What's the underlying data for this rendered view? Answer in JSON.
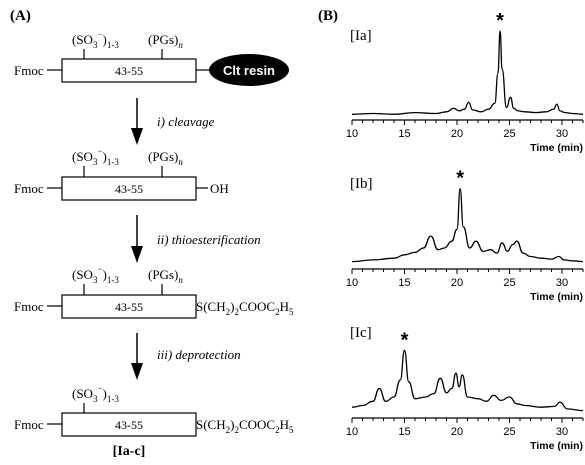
{
  "panel_a": {
    "label": "(A)",
    "steps": [
      {
        "sulfate": "(SO3−)1-3",
        "pgs": "(PGs)n",
        "n_terminal": "Fmoc",
        "segment": "43-55",
        "c_terminal": "Clt resin"
      },
      {
        "sulfate": "(SO3−)1-3",
        "pgs": "(PGs)n",
        "n_terminal": "Fmoc",
        "segment": "43-55",
        "c_terminal": "OH"
      },
      {
        "sulfate": "(SO3−)1-3",
        "pgs": "(PGs)n",
        "n_terminal": "Fmoc",
        "segment": "43-55",
        "c_terminal": "S(CH2)2COOC2H5"
      },
      {
        "sulfate": "(SO3−)1-3",
        "n_terminal": "Fmoc",
        "segment": "43-55",
        "c_terminal": "S(CH2)2COOC2H5",
        "compound": "[Ia-c]"
      }
    ],
    "arrows": [
      "i) cleavage",
      "ii) thioesterification",
      "iii) deprotection"
    ]
  },
  "panel_b": {
    "label": "(B)",
    "peak_marker": "*",
    "xlabel": "Time (min)",
    "tick_labels": [
      "10",
      "15",
      "20",
      "25",
      "30"
    ]
  },
  "chart_data": [
    {
      "type": "line",
      "title": "[Ia]",
      "xlabel": "Time (min)",
      "xlim": [
        10,
        32
      ],
      "marker_x": 24.1,
      "x": [
        10,
        12,
        14,
        16,
        18,
        19,
        19.7,
        20.2,
        20.7,
        21.1,
        21.5,
        22.3,
        23,
        23.6,
        23.9,
        24.1,
        24.3,
        24.7,
        25.1,
        25.4,
        25.8,
        26.5,
        27.5,
        28.5,
        29.2,
        29.5,
        29.8,
        30.3,
        31,
        32
      ],
      "y": [
        0.02,
        0.03,
        0.02,
        0.04,
        0.03,
        0.05,
        0.09,
        0.06,
        0.08,
        0.16,
        0.07,
        0.05,
        0.08,
        0.15,
        0.5,
        1.0,
        0.55,
        0.1,
        0.22,
        0.09,
        0.06,
        0.05,
        0.04,
        0.05,
        0.08,
        0.14,
        0.06,
        0.04,
        0.03,
        0.02
      ]
    },
    {
      "type": "line",
      "title": "[Ib]",
      "xlabel": "Time (min)",
      "xlim": [
        10,
        32
      ],
      "marker_x": 20.3,
      "x": [
        10,
        12,
        14,
        15,
        16,
        16.8,
        17.5,
        18.2,
        18.8,
        19.5,
        20,
        20.3,
        20.6,
        21.2,
        21.8,
        22.5,
        23.2,
        23.8,
        24.3,
        24.8,
        25.3,
        25.7,
        26.3,
        27,
        28,
        29,
        29.7,
        30.2,
        31,
        32
      ],
      "y": [
        0.04,
        0.06,
        0.08,
        0.12,
        0.15,
        0.2,
        0.34,
        0.18,
        0.2,
        0.28,
        0.42,
        0.9,
        0.45,
        0.2,
        0.28,
        0.16,
        0.18,
        0.14,
        0.26,
        0.16,
        0.24,
        0.28,
        0.14,
        0.1,
        0.08,
        0.07,
        0.1,
        0.06,
        0.05,
        0.04
      ]
    },
    {
      "type": "line",
      "title": "[Ic]",
      "xlabel": "Time (min)",
      "xlim": [
        10,
        32
      ],
      "marker_x": 15.0,
      "x": [
        10,
        11,
        12,
        12.6,
        13.2,
        14,
        14.6,
        15,
        15.4,
        16,
        17,
        17.8,
        18.4,
        19,
        19.5,
        19.9,
        20.2,
        20.5,
        21,
        22,
        22.8,
        23.5,
        24.2,
        25,
        25.7,
        26.5,
        28,
        29.3,
        29.8,
        30.5,
        32
      ],
      "y": [
        0.08,
        0.1,
        0.15,
        0.3,
        0.15,
        0.2,
        0.4,
        0.75,
        0.38,
        0.18,
        0.2,
        0.24,
        0.42,
        0.25,
        0.3,
        0.48,
        0.32,
        0.46,
        0.2,
        0.18,
        0.15,
        0.22,
        0.16,
        0.2,
        0.12,
        0.1,
        0.08,
        0.09,
        0.14,
        0.06,
        0.04
      ]
    }
  ]
}
